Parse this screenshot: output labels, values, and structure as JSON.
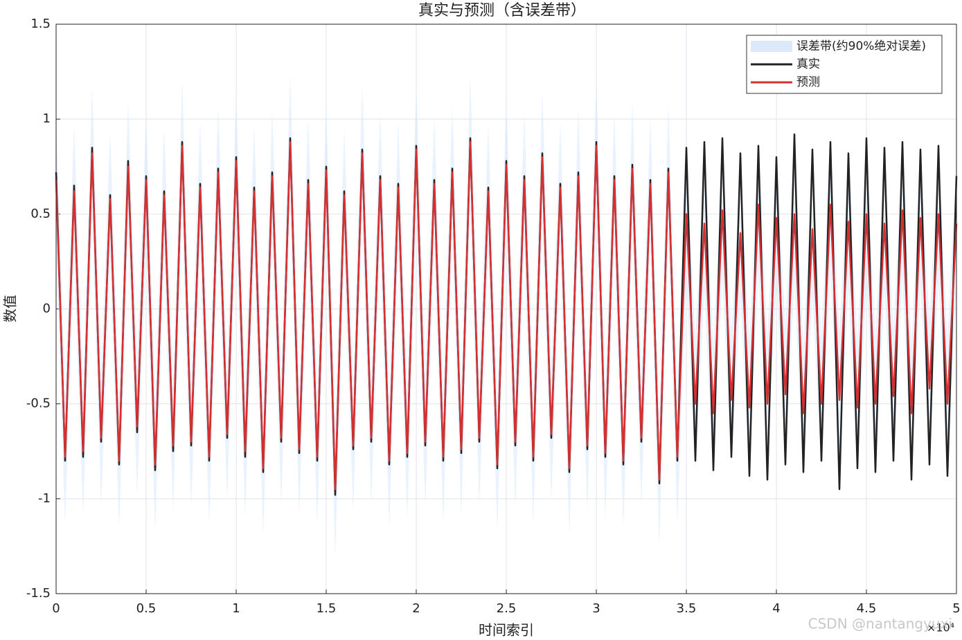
{
  "chart_data": {
    "type": "line",
    "title": "真实与预测（含误差带）",
    "x_label": "时间索引",
    "y_label": "数值",
    "x_multiplier_label": "×10⁴",
    "watermark": "CSDN @nantangyuxi",
    "xlim": [
      0,
      5
    ],
    "xticks": [
      0,
      0.5,
      1,
      1.5,
      2,
      2.5,
      3,
      3.5,
      4,
      4.5,
      5
    ],
    "ylim": [
      -1.5,
      1.5
    ],
    "yticks": [
      -1.5,
      -1,
      -0.5,
      0,
      0.5,
      1,
      1.5
    ],
    "grid": true,
    "legend": "upper right",
    "x": [
      0,
      0.05,
      0.1,
      0.15,
      0.2,
      0.25,
      0.3,
      0.35,
      0.4,
      0.45,
      0.5,
      0.55,
      0.6,
      0.65,
      0.7,
      0.75,
      0.8,
      0.85,
      0.9,
      0.95,
      1,
      1.05,
      1.1,
      1.15,
      1.2,
      1.25,
      1.3,
      1.35,
      1.4,
      1.45,
      1.5,
      1.55,
      1.6,
      1.65,
      1.7,
      1.75,
      1.8,
      1.85,
      1.9,
      1.95,
      2,
      2.05,
      2.1,
      2.15,
      2.2,
      2.25,
      2.3,
      2.35,
      2.4,
      2.45,
      2.5,
      2.55,
      2.6,
      2.65,
      2.7,
      2.75,
      2.8,
      2.85,
      2.9,
      2.95,
      3,
      3.05,
      3.1,
      3.15,
      3.2,
      3.25,
      3.3,
      3.35,
      3.4,
      3.45,
      3.5,
      3.55,
      3.6,
      3.65,
      3.7,
      3.75,
      3.8,
      3.85,
      3.9,
      3.95,
      4,
      4.05,
      4.1,
      4.15,
      4.2,
      4.25,
      4.3,
      4.35,
      4.4,
      4.45,
      4.5,
      4.55,
      4.6,
      4.65,
      4.7,
      4.75,
      4.8,
      4.85,
      4.9,
      4.95,
      5
    ],
    "series": [
      {
        "name": "误差带(约90%绝对误差)",
        "color": "#dbe9fb",
        "error": 0.35
      },
      {
        "name": "真实",
        "color": "#222222",
        "values": [
          0.72,
          -0.8,
          0.65,
          -0.78,
          0.85,
          -0.7,
          0.6,
          -0.82,
          0.78,
          -0.65,
          0.7,
          -0.85,
          0.62,
          -0.75,
          0.88,
          -0.72,
          0.66,
          -0.8,
          0.74,
          -0.68,
          0.8,
          -0.78,
          0.64,
          -0.86,
          0.72,
          -0.7,
          0.9,
          -0.76,
          0.68,
          -0.8,
          0.75,
          -0.98,
          0.62,
          -0.74,
          0.84,
          -0.7,
          0.7,
          -0.82,
          0.66,
          -0.78,
          0.86,
          -0.72,
          0.68,
          -0.8,
          0.74,
          -0.76,
          0.9,
          -0.7,
          0.64,
          -0.84,
          0.78,
          -0.72,
          0.7,
          -0.8,
          0.82,
          -0.68,
          0.66,
          -0.86,
          0.72,
          -0.74,
          0.88,
          -0.78,
          0.7,
          -0.82,
          0.76,
          -0.7,
          0.68,
          -0.92,
          0.74,
          -0.8,
          0.85,
          -0.8,
          0.88,
          -0.85,
          0.9,
          -0.78,
          0.82,
          -0.88,
          0.86,
          -0.9,
          0.8,
          -0.82,
          0.92,
          -0.86,
          0.84,
          -0.8,
          0.88,
          -0.95,
          0.82,
          -0.84,
          0.9,
          -0.86,
          0.85,
          -0.8,
          0.88,
          -0.9,
          0.84,
          -0.82,
          0.86,
          -0.88,
          0.7
        ]
      },
      {
        "name": "预测",
        "color": "#d62f2f",
        "values": [
          0.68,
          -0.78,
          0.62,
          -0.75,
          0.82,
          -0.68,
          0.58,
          -0.8,
          0.75,
          -0.62,
          0.68,
          -0.82,
          0.6,
          -0.72,
          0.86,
          -0.7,
          0.64,
          -0.78,
          0.72,
          -0.66,
          0.78,
          -0.75,
          0.62,
          -0.84,
          0.7,
          -0.68,
          0.88,
          -0.74,
          0.66,
          -0.78,
          0.73,
          -0.95,
          0.6,
          -0.72,
          0.82,
          -0.68,
          0.68,
          -0.8,
          0.64,
          -0.76,
          0.84,
          -0.7,
          0.66,
          -0.78,
          0.72,
          -0.74,
          0.88,
          -0.68,
          0.62,
          -0.82,
          0.76,
          -0.7,
          0.68,
          -0.78,
          0.8,
          -0.66,
          0.64,
          -0.84,
          0.7,
          -0.72,
          0.86,
          -0.76,
          0.68,
          -0.8,
          0.74,
          -0.68,
          0.66,
          -0.9,
          0.72,
          -0.78,
          0.5,
          -0.5,
          0.45,
          -0.55,
          0.52,
          -0.48,
          0.4,
          -0.52,
          0.55,
          -0.5,
          0.48,
          -0.45,
          0.5,
          -0.55,
          0.42,
          -0.5,
          0.55,
          -0.48,
          0.46,
          -0.52,
          0.5,
          -0.5,
          0.45,
          -0.46,
          0.52,
          -0.55,
          0.48,
          -0.42,
          0.5,
          -0.5,
          0.45
        ]
      }
    ]
  }
}
